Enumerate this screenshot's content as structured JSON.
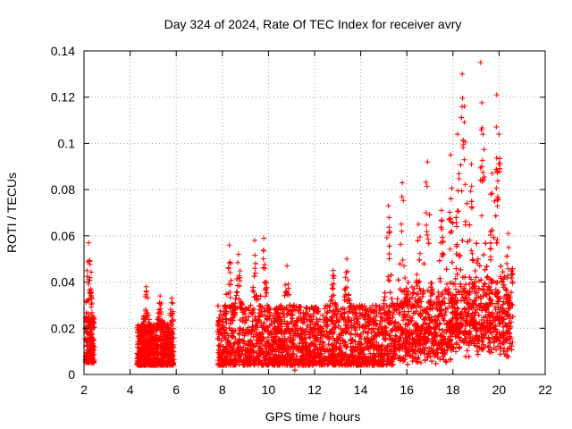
{
  "chart_data": {
    "type": "scatter",
    "title": "Day 324 of 2024, Rate Of TEC Index for receiver avry",
    "xlabel": "GPS time / hours",
    "ylabel": "ROTI / TECUs",
    "xlim": [
      2,
      22
    ],
    "ylim": [
      0,
      0.14
    ],
    "xticks": [
      2,
      4,
      6,
      8,
      10,
      12,
      14,
      16,
      18,
      20,
      22
    ],
    "yticks": [
      0,
      0.02,
      0.04,
      0.06,
      0.08,
      0.1,
      0.12,
      0.14
    ],
    "xtick_labels": [
      "2",
      "4",
      "6",
      "8",
      "10",
      "12",
      "14",
      "16",
      "18",
      "20",
      "22"
    ],
    "ytick_labels": [
      "0",
      "0.02",
      "0.04",
      "0.06",
      "0.08",
      "0.1",
      "0.12",
      "0.14"
    ],
    "grid": true,
    "marker": "+",
    "color": "#ff0000",
    "series": [
      {
        "name": "ROTI",
        "segments": [
          {
            "x_range": [
              2.05,
              2.45
            ],
            "typical": [
              0.005,
              0.025
            ]
          },
          {
            "x_range": [
              4.3,
              5.9
            ],
            "typical": [
              0.004,
              0.022
            ]
          },
          {
            "x_range": [
              7.8,
              20.6
            ],
            "typical": [
              0.004,
              0.03
            ]
          }
        ],
        "peaks": [
          {
            "x": 2.2,
            "y": 0.057
          },
          {
            "x": 2.25,
            "y": 0.049
          },
          {
            "x": 2.3,
            "y": 0.037
          },
          {
            "x": 4.7,
            "y": 0.038
          },
          {
            "x": 5.3,
            "y": 0.034
          },
          {
            "x": 5.8,
            "y": 0.033
          },
          {
            "x": 8.3,
            "y": 0.056
          },
          {
            "x": 8.7,
            "y": 0.052
          },
          {
            "x": 9.4,
            "y": 0.058
          },
          {
            "x": 9.8,
            "y": 0.059
          },
          {
            "x": 10.8,
            "y": 0.047
          },
          {
            "x": 12.8,
            "y": 0.045
          },
          {
            "x": 13.4,
            "y": 0.05
          },
          {
            "x": 15.2,
            "y": 0.073
          },
          {
            "x": 15.8,
            "y": 0.083
          },
          {
            "x": 16.5,
            "y": 0.065
          },
          {
            "x": 16.9,
            "y": 0.092
          },
          {
            "x": 17.5,
            "y": 0.071
          },
          {
            "x": 17.9,
            "y": 0.095
          },
          {
            "x": 18.2,
            "y": 0.104
          },
          {
            "x": 18.4,
            "y": 0.13
          },
          {
            "x": 18.5,
            "y": 0.116
          },
          {
            "x": 18.8,
            "y": 0.091
          },
          {
            "x": 19.2,
            "y": 0.135
          },
          {
            "x": 19.3,
            "y": 0.104
          },
          {
            "x": 19.7,
            "y": 0.087
          },
          {
            "x": 19.9,
            "y": 0.121
          },
          {
            "x": 20.0,
            "y": 0.104
          },
          {
            "x": 20.4,
            "y": 0.061
          }
        ]
      }
    ]
  }
}
